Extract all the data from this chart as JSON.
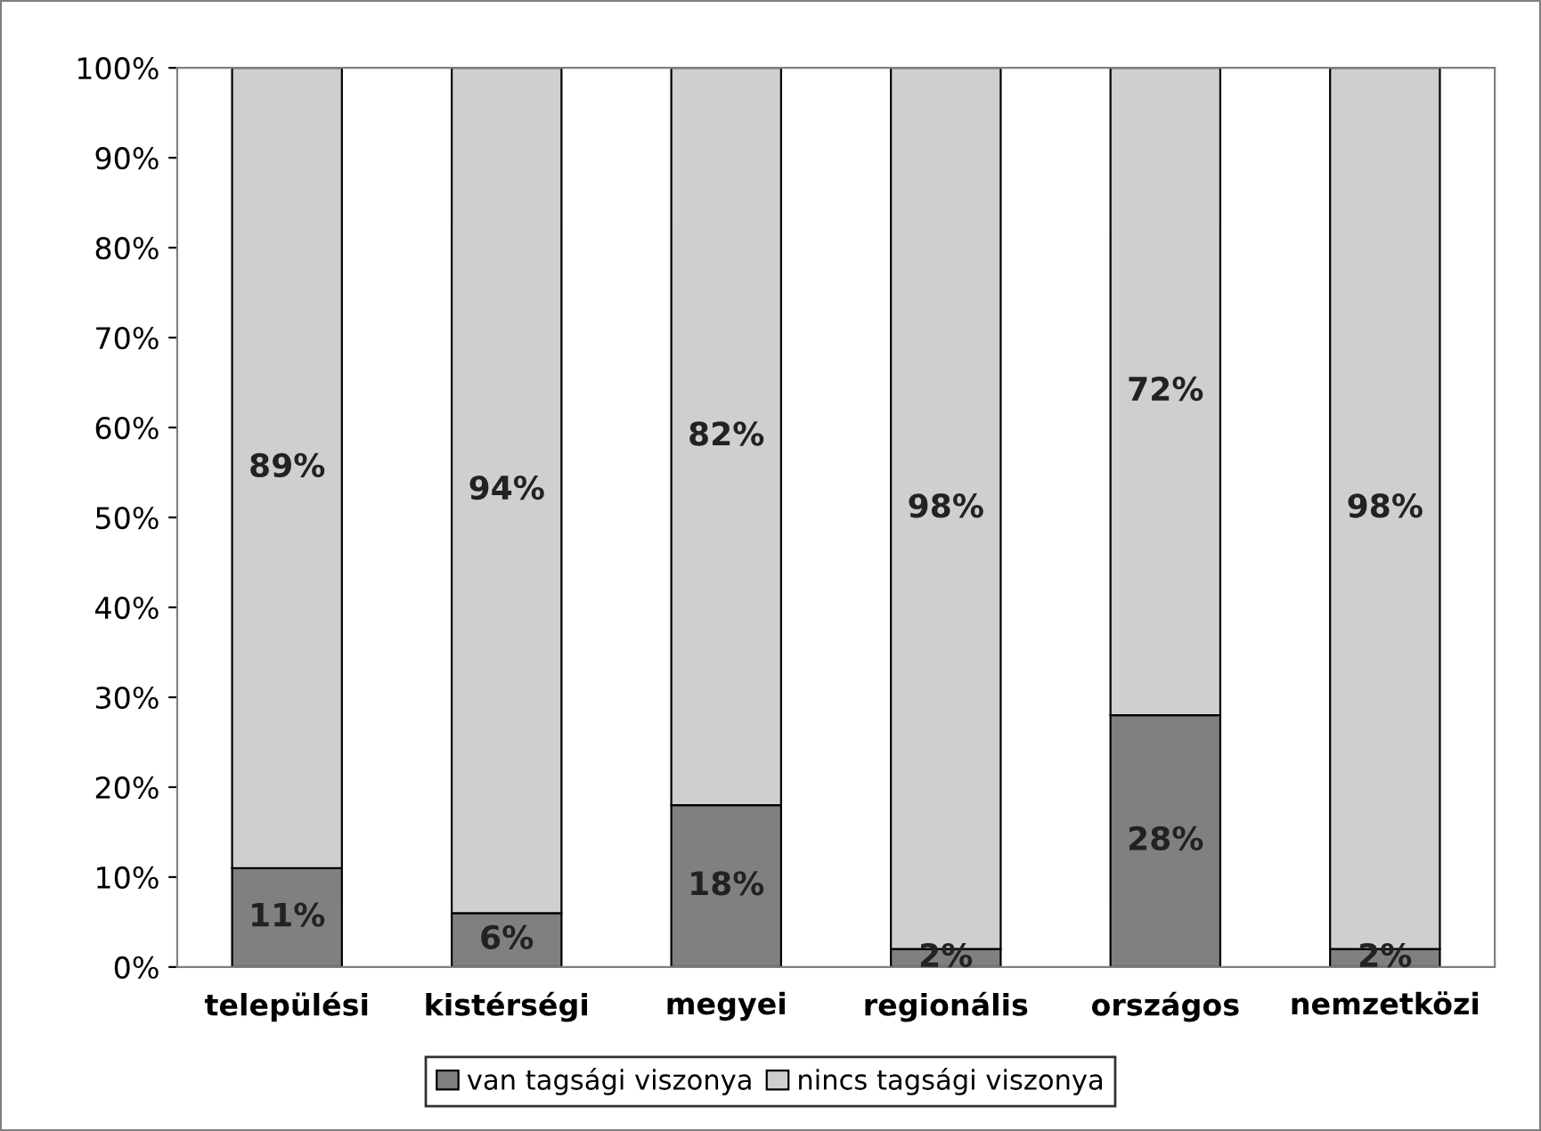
{
  "chart_data": {
    "type": "bar",
    "stacked": true,
    "categories": [
      "települési",
      "kistérségi",
      "megyei",
      "regionális",
      "országos",
      "nemzetközi"
    ],
    "series": [
      {
        "name": "van tagsági viszonya",
        "color": "#808080",
        "values": [
          11,
          6,
          18,
          2,
          28,
          2
        ],
        "value_labels": [
          "11%",
          "6%",
          "18%",
          "2%",
          "28%",
          "2%"
        ]
      },
      {
        "name": "nincs tagsági viszonya",
        "color": "#cfcfcf",
        "values": [
          89,
          94,
          82,
          98,
          72,
          98
        ],
        "value_labels": [
          "89%",
          "94%",
          "82%",
          "98%",
          "72%",
          "98%"
        ]
      }
    ],
    "ylim": [
      0,
      100
    ],
    "yticks": [
      {
        "value": 0,
        "label": "0%"
      },
      {
        "value": 10,
        "label": "10%"
      },
      {
        "value": 20,
        "label": "20%"
      },
      {
        "value": 30,
        "label": "30%"
      },
      {
        "value": 40,
        "label": "40%"
      },
      {
        "value": 50,
        "label": "50%"
      },
      {
        "value": 60,
        "label": "60%"
      },
      {
        "value": 70,
        "label": "70%"
      },
      {
        "value": 80,
        "label": "80%"
      },
      {
        "value": 90,
        "label": "90%"
      },
      {
        "value": 100,
        "label": "100%"
      }
    ],
    "legend": "bottom",
    "grid": false
  }
}
